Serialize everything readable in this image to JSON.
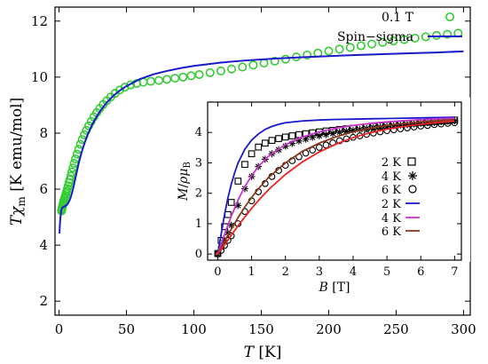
{
  "chart_data": [
    {
      "type": "scatter",
      "panel": "main",
      "xlabel": "T [K]",
      "ylabel": "Tχm [K emu/mol]",
      "xlim": [
        -3,
        305
      ],
      "ylim": [
        1.5,
        12.5
      ],
      "xticks": [
        0,
        50,
        100,
        150,
        200,
        250,
        300
      ],
      "yticks": [
        2,
        4,
        6,
        8,
        10,
        12
      ],
      "legend_position": "top-right",
      "legend": [
        "0.1 T",
        "Spin−sigma"
      ],
      "colors": {
        "data": "#33cc33",
        "fit": "#1a1acc"
      },
      "series": [
        {
          "name": "0.1 T",
          "kind": "markers",
          "marker": "circle",
          "x": [
            1.8,
            2.0,
            2.2,
            2.5,
            2.8,
            3.0,
            3.3,
            3.6,
            4.0,
            4.4,
            4.8,
            5.2,
            5.7,
            6.2,
            6.8,
            7.4,
            8.0,
            8.7,
            9.5,
            10.3,
            11.2,
            12.2,
            13.3,
            14.5,
            15.8,
            17.2,
            18.7,
            20.3,
            22.0,
            23.8,
            25.8,
            27.9,
            30.2,
            32.7,
            35.4,
            38.3,
            41.5,
            45.0,
            48.8,
            53.0,
            57.5,
            62.5,
            68.0,
            74.0,
            80.0,
            86.0,
            92.0,
            98.0,
            104.0,
            112.0,
            120.0,
            128.0,
            136.0,
            144.0,
            152.0,
            160.0,
            168.0,
            176.0,
            184.0,
            192.0,
            200.0,
            208.0,
            216.0,
            224.0,
            232.0,
            240.0,
            248.0,
            256.0,
            264.0,
            272.0,
            280.0,
            288.0,
            296.0
          ],
          "y": [
            5.22,
            5.26,
            5.31,
            5.37,
            5.43,
            5.49,
            5.55,
            5.6,
            5.66,
            5.72,
            5.78,
            5.85,
            5.93,
            6.02,
            6.12,
            6.23,
            6.34,
            6.47,
            6.61,
            6.76,
            6.92,
            7.08,
            7.25,
            7.42,
            7.6,
            7.77,
            7.94,
            8.1,
            8.26,
            8.42,
            8.58,
            8.73,
            8.88,
            9.02,
            9.16,
            9.29,
            9.42,
            9.54,
            9.64,
            9.72,
            9.77,
            9.82,
            9.85,
            9.88,
            9.92,
            9.96,
            10.0,
            10.05,
            10.09,
            10.16,
            10.22,
            10.29,
            10.36,
            10.43,
            10.5,
            10.57,
            10.64,
            10.72,
            10.79,
            10.86,
            10.93,
            11.0,
            11.06,
            11.12,
            11.18,
            11.24,
            11.29,
            11.34,
            11.39,
            11.44,
            11.49,
            11.53,
            11.57
          ]
        },
        {
          "name": "Spin−sigma",
          "kind": "line",
          "x": [
            0.3,
            0.5,
            0.8,
            1.2,
            1.6,
            2.0,
            2.5,
            3.0,
            3.5,
            4.0,
            5.0,
            6.0,
            7.0,
            8.0,
            9.0,
            10.0,
            11.0,
            12.0,
            13.0,
            14.0,
            15.0,
            17.0,
            19.0,
            21.0,
            23.0,
            25.0,
            28.0,
            31.0,
            35.0,
            40.0,
            45.0,
            50.0,
            60.0,
            70.0,
            80.0,
            90.0,
            100.0,
            120.0,
            140.0,
            160.0,
            180.0,
            200.0,
            220.0,
            240.0,
            260.0,
            280.0,
            300.0
          ],
          "y": [
            4.42,
            4.62,
            4.86,
            5.08,
            5.22,
            5.3,
            5.34,
            5.36,
            5.37,
            5.38,
            5.41,
            5.45,
            5.52,
            5.62,
            5.76,
            5.94,
            6.14,
            6.36,
            6.58,
            6.8,
            7.0,
            7.36,
            7.66,
            7.92,
            8.14,
            8.34,
            8.6,
            8.82,
            9.07,
            9.32,
            9.52,
            9.68,
            9.93,
            10.1,
            10.22,
            10.32,
            10.4,
            10.52,
            10.6,
            10.66,
            10.71,
            10.75,
            10.79,
            10.82,
            10.85,
            10.88,
            10.92
          ]
        }
      ]
    },
    {
      "type": "scatter",
      "panel": "inset",
      "xlabel": "B [T]",
      "ylabel": "M/ρμB",
      "xlim": [
        -0.3,
        7.2
      ],
      "ylim": [
        -0.2,
        5.0
      ],
      "xticks": [
        0,
        1,
        2,
        3,
        4,
        5,
        6,
        7
      ],
      "yticks": [
        0,
        1,
        2,
        3,
        4
      ],
      "legend_position": "bottom-right",
      "legend": [
        "2 K",
        "4 K",
        "6 K",
        "2 K",
        "4 K",
        "6 K"
      ],
      "series": [
        {
          "name": "2 K",
          "kind": "markers",
          "marker": "square",
          "color": "#000000",
          "x": [
            0.0,
            0.1,
            0.2,
            0.3,
            0.4,
            0.6,
            0.8,
            1.0,
            1.2,
            1.4,
            1.6,
            1.8,
            2.0,
            2.2,
            2.4,
            2.6,
            2.8,
            3.0,
            3.2,
            3.4,
            3.6,
            3.8,
            4.0,
            4.2,
            4.4,
            4.6,
            4.8,
            5.0,
            5.2,
            5.4,
            5.6,
            5.8,
            6.0,
            6.2,
            6.4,
            6.6,
            6.8,
            7.0
          ],
          "y": [
            0.02,
            0.45,
            0.9,
            1.3,
            1.7,
            2.4,
            2.95,
            3.3,
            3.52,
            3.65,
            3.74,
            3.8,
            3.85,
            3.89,
            3.93,
            3.96,
            3.99,
            4.02,
            4.05,
            4.07,
            4.1,
            4.12,
            4.14,
            4.16,
            4.18,
            4.2,
            4.22,
            4.24,
            4.26,
            4.28,
            4.29,
            4.31,
            4.33,
            4.34,
            4.36,
            4.38,
            4.39,
            4.41
          ]
        },
        {
          "name": "4 K",
          "kind": "markers",
          "marker": "asterisk",
          "color": "#000000",
          "x": [
            0.0,
            0.1,
            0.2,
            0.3,
            0.4,
            0.6,
            0.8,
            1.0,
            1.2,
            1.4,
            1.6,
            1.8,
            2.0,
            2.2,
            2.4,
            2.6,
            2.8,
            3.0,
            3.2,
            3.4,
            3.6,
            3.8,
            4.0,
            4.2,
            4.4,
            4.6,
            4.8,
            5.0,
            5.2,
            5.4,
            5.6,
            5.8,
            6.0,
            6.2,
            6.4,
            6.6,
            6.8,
            7.0
          ],
          "y": [
            0.0,
            0.22,
            0.45,
            0.7,
            0.95,
            1.6,
            2.15,
            2.55,
            2.88,
            3.12,
            3.3,
            3.43,
            3.55,
            3.64,
            3.72,
            3.78,
            3.84,
            3.89,
            3.93,
            3.97,
            4.01,
            4.04,
            4.07,
            4.1,
            4.13,
            4.16,
            4.18,
            4.2,
            4.22,
            4.24,
            4.26,
            4.28,
            4.3,
            4.32,
            4.33,
            4.35,
            4.37,
            4.38
          ]
        },
        {
          "name": "6 K",
          "kind": "markers",
          "marker": "circle",
          "color": "#000000",
          "x": [
            0.0,
            0.1,
            0.2,
            0.3,
            0.4,
            0.6,
            0.8,
            1.0,
            1.2,
            1.4,
            1.6,
            1.8,
            2.0,
            2.2,
            2.4,
            2.6,
            2.8,
            3.0,
            3.2,
            3.4,
            3.6,
            3.8,
            4.0,
            4.2,
            4.4,
            4.6,
            4.8,
            5.0,
            5.2,
            5.4,
            5.6,
            5.8,
            6.0,
            6.2,
            6.4,
            6.6,
            6.8,
            7.0
          ],
          "y": [
            0.0,
            0.12,
            0.28,
            0.45,
            0.6,
            1.0,
            1.4,
            1.75,
            2.05,
            2.32,
            2.55,
            2.75,
            2.92,
            3.07,
            3.2,
            3.32,
            3.42,
            3.51,
            3.59,
            3.66,
            3.73,
            3.79,
            3.84,
            3.89,
            3.94,
            3.98,
            4.02,
            4.06,
            4.09,
            4.12,
            4.15,
            4.18,
            4.21,
            4.23,
            4.26,
            4.28,
            4.3,
            4.32
          ]
        },
        {
          "name": "2 K",
          "kind": "line",
          "color": "#1a1acc",
          "x": [
            -0.05,
            0.0,
            0.1,
            0.2,
            0.3,
            0.4,
            0.5,
            0.6,
            0.8,
            1.0,
            1.2,
            1.4,
            1.6,
            1.8,
            2.0,
            2.5,
            3.0,
            3.5,
            4.0,
            4.5,
            5.0,
            5.5,
            6.0,
            6.5,
            7.0
          ],
          "y": [
            0.0,
            0.0,
            0.65,
            1.3,
            1.85,
            2.3,
            2.68,
            3.0,
            3.45,
            3.75,
            3.95,
            4.1,
            4.2,
            4.27,
            4.32,
            4.38,
            4.41,
            4.43,
            4.44,
            4.45,
            4.46,
            4.47,
            4.48,
            4.49,
            4.5
          ]
        },
        {
          "name": "4 K",
          "kind": "line",
          "color": "#cc33cc",
          "x": [
            -0.05,
            0.0,
            0.1,
            0.2,
            0.3,
            0.4,
            0.6,
            0.8,
            1.0,
            1.2,
            1.5,
            2.0,
            2.5,
            3.0,
            3.5,
            4.0,
            4.5,
            5.0,
            5.5,
            6.0,
            6.5,
            7.0
          ],
          "y": [
            0.0,
            0.0,
            0.32,
            0.65,
            0.95,
            1.25,
            1.78,
            2.22,
            2.58,
            2.88,
            3.22,
            3.6,
            3.85,
            4.02,
            4.14,
            4.23,
            4.3,
            4.35,
            4.39,
            4.42,
            4.45,
            4.47
          ]
        },
        {
          "name": "6 K",
          "kind": "line",
          "color": "#8b3a1a",
          "x": [
            -0.05,
            0.0,
            0.2,
            0.4,
            0.6,
            0.8,
            1.0,
            1.2,
            1.5,
            2.0,
            2.5,
            3.0,
            3.5,
            4.0,
            4.5,
            5.0,
            5.5,
            6.0,
            6.5,
            7.0
          ],
          "y": [
            0.0,
            0.0,
            0.42,
            0.82,
            1.2,
            1.55,
            1.86,
            2.15,
            2.52,
            3.0,
            3.38,
            3.65,
            3.86,
            4.02,
            4.14,
            4.23,
            4.3,
            4.35,
            4.39,
            4.42
          ]
        },
        {
          "name": "6 K",
          "kind": "line",
          "color": "#ee2222",
          "x": [
            -0.05,
            0.0,
            0.2,
            0.4,
            0.6,
            0.8,
            1.0,
            1.2,
            1.5,
            2.0,
            2.5,
            3.0,
            3.5,
            4.0,
            4.5,
            5.0,
            5.5,
            6.0,
            6.5,
            7.0
          ],
          "y": [
            0.0,
            0.0,
            0.3,
            0.62,
            0.93,
            1.22,
            1.5,
            1.76,
            2.12,
            2.62,
            3.03,
            3.36,
            3.62,
            3.83,
            3.99,
            4.11,
            4.2,
            4.27,
            4.33,
            4.38
          ]
        }
      ]
    }
  ]
}
